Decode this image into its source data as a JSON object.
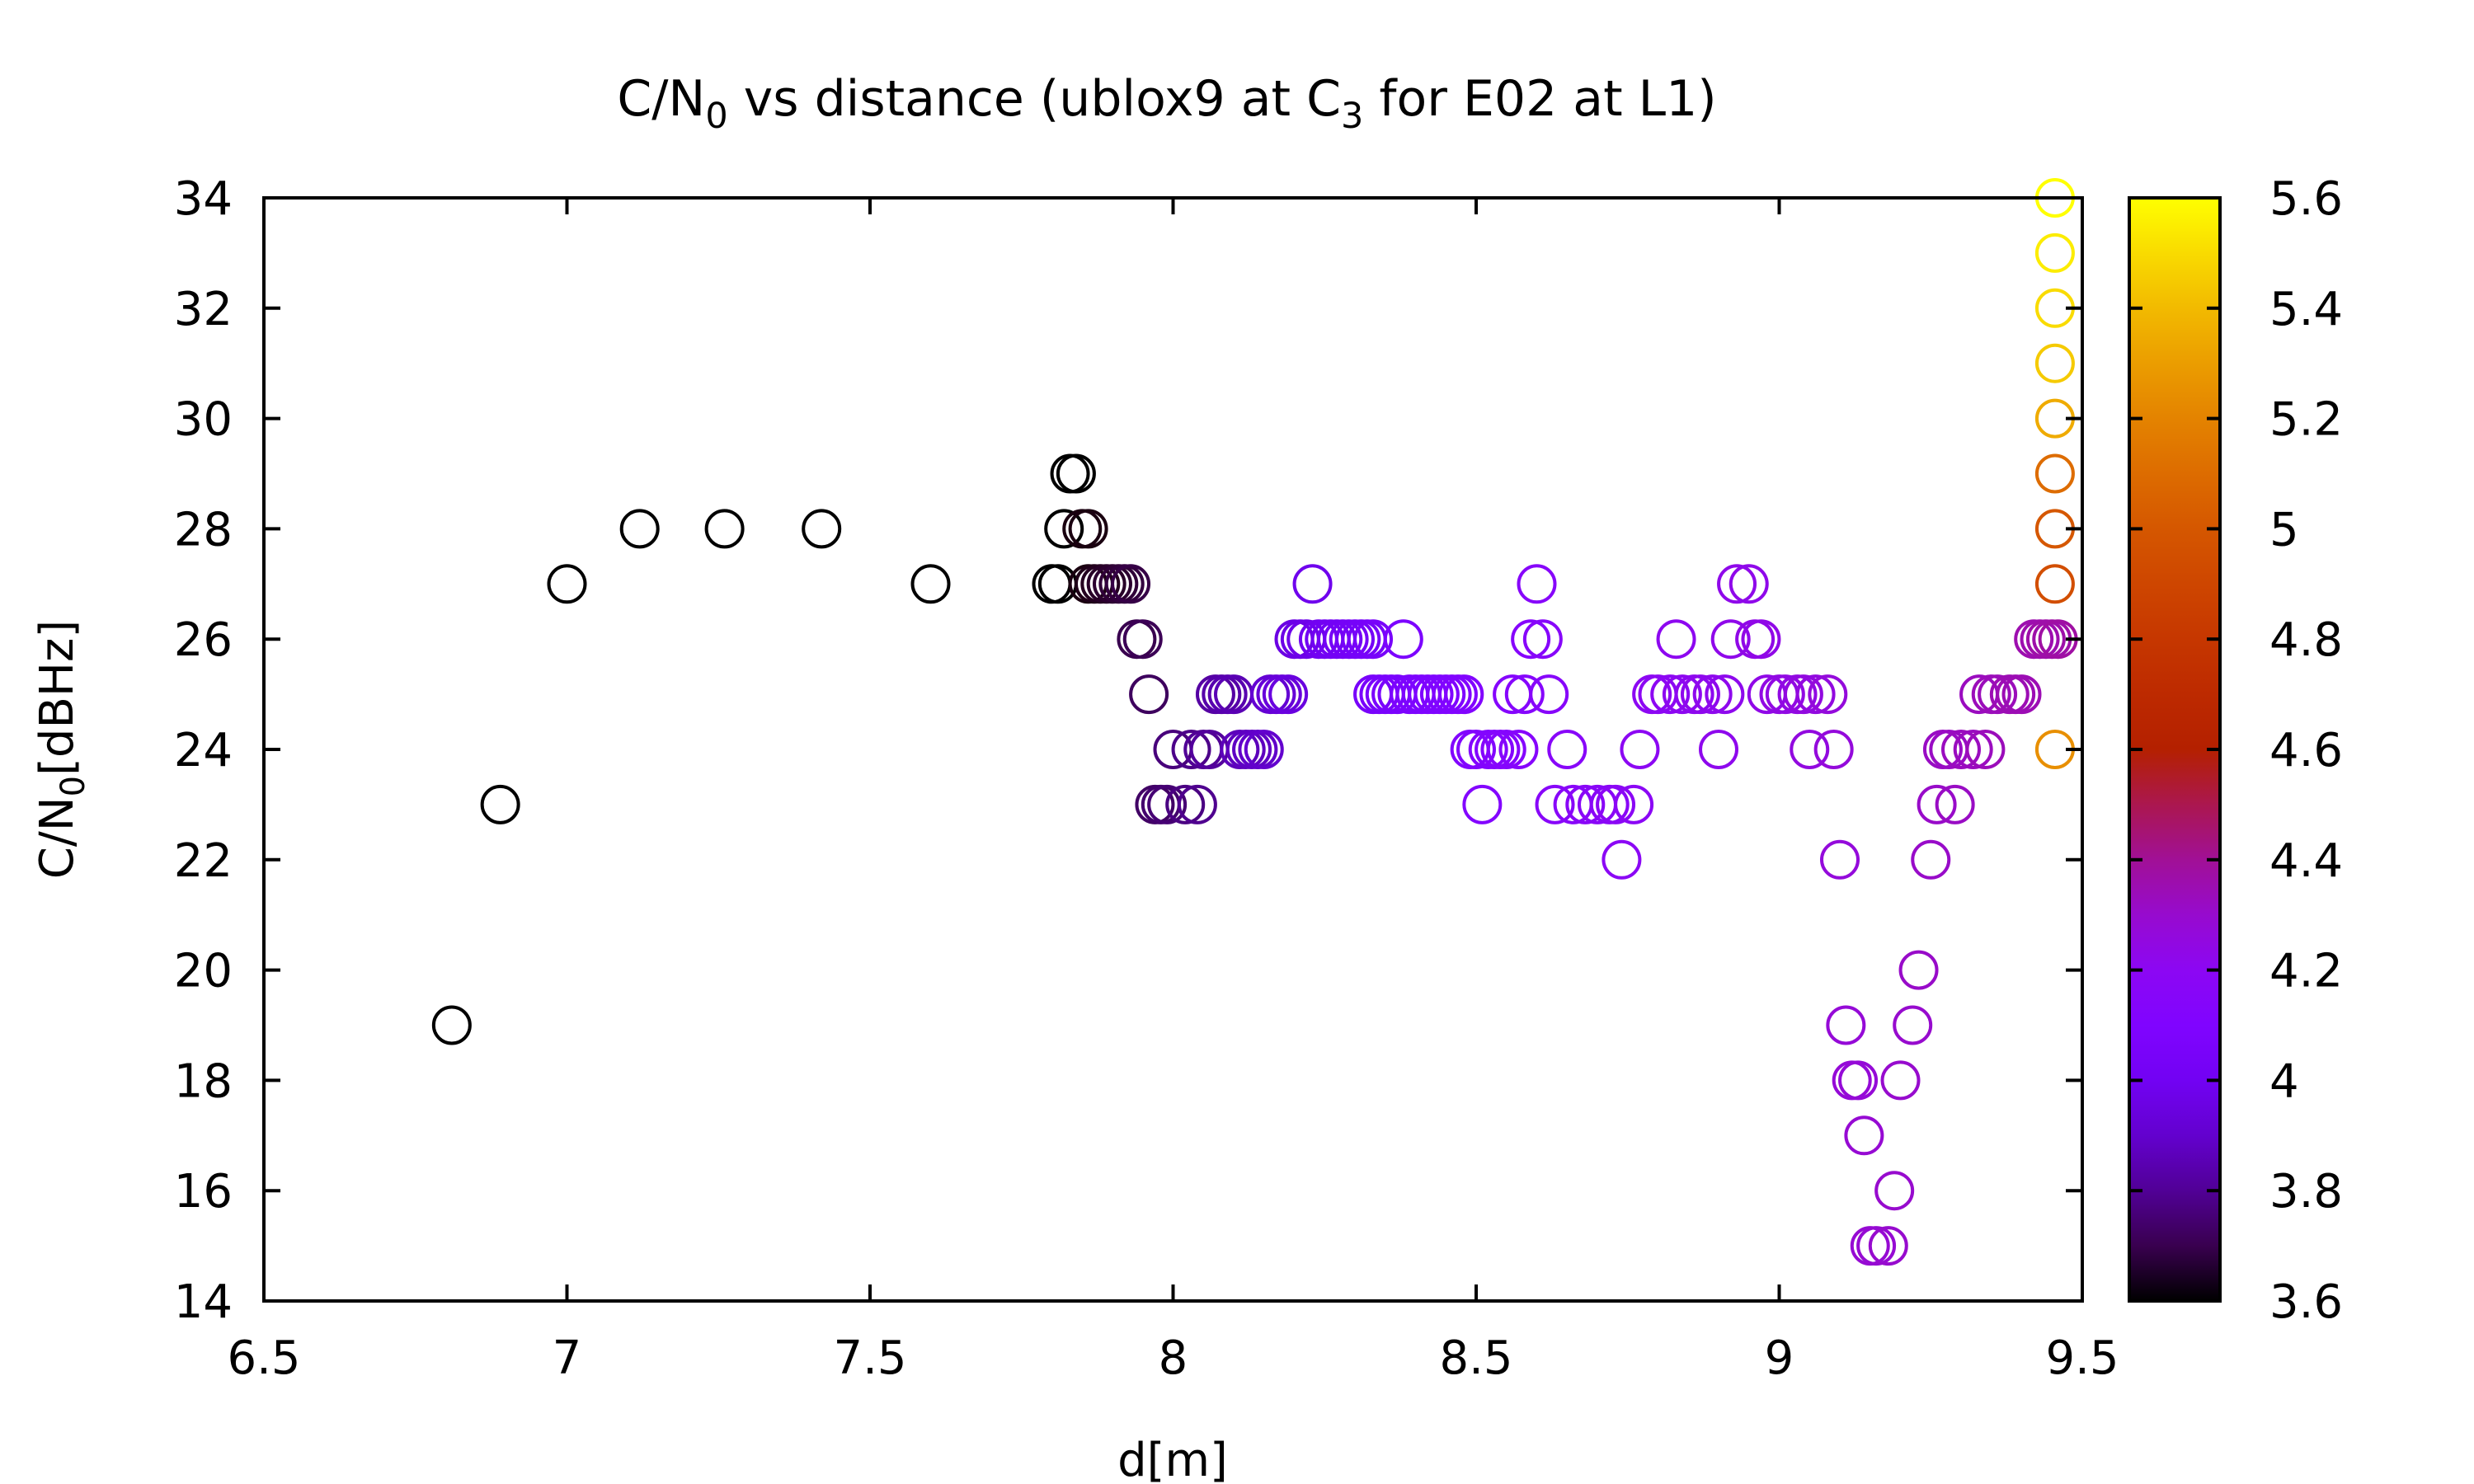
{
  "chart_data": {
    "type": "scatter",
    "title_parts": [
      {
        "text": "C/N",
        "sub": false
      },
      {
        "text": "0",
        "sub": true
      },
      {
        "text": " vs distance (ublox9 at C",
        "sub": false
      },
      {
        "text": "3",
        "sub": true
      },
      {
        "text": " for E02 at L1)",
        "sub": false
      }
    ],
    "xlabel": "d[m]",
    "ylabel_parts": [
      {
        "text": "C/N",
        "sub": false
      },
      {
        "text": "0",
        "sub": true
      },
      {
        "text": "[dBHz]",
        "sub": false
      }
    ],
    "xlim": [
      6.5,
      9.5
    ],
    "ylim": [
      14,
      34
    ],
    "xticks": [
      "6.5",
      "7",
      "7.5",
      "8",
      "8.5",
      "9",
      "9.5"
    ],
    "yticks": [
      "14",
      "16",
      "18",
      "20",
      "22",
      "24",
      "26",
      "28",
      "30",
      "32",
      "34"
    ],
    "colorbar": {
      "range": [
        3.6,
        5.6
      ],
      "ticks": [
        "3.6",
        "3.8",
        "4",
        "4.2",
        "4.4",
        "4.6",
        "4.8",
        "5",
        "5.2",
        "5.4",
        "5.6"
      ],
      "palette": "gnuplot"
    },
    "grid": false,
    "marker": "open-circle",
    "points": [
      [
        6.81,
        19,
        3.6
      ],
      [
        6.89,
        23,
        3.6
      ],
      [
        7.0,
        27,
        3.6
      ],
      [
        7.12,
        28,
        3.6
      ],
      [
        7.26,
        28,
        3.6
      ],
      [
        7.42,
        28,
        3.6
      ],
      [
        7.6,
        27,
        3.6
      ],
      [
        7.8,
        27,
        3.6
      ],
      [
        7.81,
        27,
        3.6
      ],
      [
        7.82,
        28,
        3.6
      ],
      [
        7.83,
        29,
        3.6
      ],
      [
        7.84,
        29,
        3.6
      ],
      [
        7.85,
        28,
        3.62
      ],
      [
        7.86,
        28,
        3.62
      ],
      [
        7.86,
        27,
        3.62
      ],
      [
        7.87,
        27,
        3.63
      ],
      [
        7.88,
        27,
        3.64
      ],
      [
        7.89,
        27,
        3.65
      ],
      [
        7.9,
        27,
        3.66
      ],
      [
        7.91,
        27,
        3.67
      ],
      [
        7.92,
        27,
        3.68
      ],
      [
        7.93,
        27,
        3.69
      ],
      [
        7.94,
        26,
        3.7
      ],
      [
        7.95,
        26,
        3.71
      ],
      [
        7.96,
        25,
        3.72
      ],
      [
        7.97,
        23,
        3.73
      ],
      [
        7.98,
        23,
        3.74
      ],
      [
        7.99,
        23,
        3.75
      ],
      [
        8.0,
        24,
        3.76
      ],
      [
        8.02,
        23,
        3.77
      ],
      [
        8.03,
        24,
        3.78
      ],
      [
        8.04,
        23,
        3.79
      ],
      [
        8.05,
        24,
        3.8
      ],
      [
        8.06,
        24,
        3.81
      ],
      [
        8.07,
        25,
        3.82
      ],
      [
        8.08,
        25,
        3.83
      ],
      [
        8.09,
        25,
        3.84
      ],
      [
        8.1,
        25,
        3.85
      ],
      [
        8.11,
        24,
        3.86
      ],
      [
        8.12,
        24,
        3.87
      ],
      [
        8.13,
        24,
        3.88
      ],
      [
        8.14,
        24,
        3.89
      ],
      [
        8.15,
        24,
        3.9
      ],
      [
        8.16,
        25,
        3.91
      ],
      [
        8.17,
        25,
        3.92
      ],
      [
        8.18,
        25,
        3.93
      ],
      [
        8.19,
        25,
        3.94
      ],
      [
        8.2,
        26,
        3.95
      ],
      [
        8.21,
        26,
        3.96
      ],
      [
        8.22,
        26,
        3.97
      ],
      [
        8.23,
        27,
        3.98
      ],
      [
        8.24,
        26,
        3.99
      ],
      [
        8.25,
        26,
        4.0
      ],
      [
        8.26,
        26,
        4.0
      ],
      [
        8.27,
        26,
        4.01
      ],
      [
        8.28,
        26,
        4.01
      ],
      [
        8.29,
        26,
        4.02
      ],
      [
        8.3,
        26,
        4.02
      ],
      [
        8.31,
        26,
        4.03
      ],
      [
        8.32,
        26,
        4.03
      ],
      [
        8.33,
        26,
        4.04
      ],
      [
        8.33,
        25,
        4.04
      ],
      [
        8.34,
        25,
        4.05
      ],
      [
        8.35,
        25,
        4.05
      ],
      [
        8.36,
        25,
        4.06
      ],
      [
        8.37,
        25,
        4.06
      ],
      [
        8.38,
        26,
        4.07
      ],
      [
        8.39,
        25,
        4.07
      ],
      [
        8.4,
        25,
        4.08
      ],
      [
        8.41,
        25,
        4.08
      ],
      [
        8.42,
        25,
        4.09
      ],
      [
        8.43,
        25,
        4.09
      ],
      [
        8.44,
        25,
        4.1
      ],
      [
        8.45,
        25,
        4.1
      ],
      [
        8.46,
        25,
        4.11
      ],
      [
        8.47,
        25,
        4.11
      ],
      [
        8.48,
        25,
        4.12
      ],
      [
        8.49,
        24,
        4.12
      ],
      [
        8.5,
        24,
        4.12
      ],
      [
        8.51,
        23,
        4.13
      ],
      [
        8.52,
        24,
        4.13
      ],
      [
        8.53,
        24,
        4.13
      ],
      [
        8.54,
        24,
        4.14
      ],
      [
        8.55,
        24,
        4.14
      ],
      [
        8.56,
        25,
        4.14
      ],
      [
        8.57,
        24,
        4.15
      ],
      [
        8.58,
        25,
        4.15
      ],
      [
        8.59,
        26,
        4.15
      ],
      [
        8.6,
        27,
        4.16
      ],
      [
        8.61,
        26,
        4.16
      ],
      [
        8.62,
        25,
        4.16
      ],
      [
        8.63,
        23,
        4.17
      ],
      [
        8.65,
        24,
        4.17
      ],
      [
        8.66,
        23,
        4.17
      ],
      [
        8.68,
        23,
        4.18
      ],
      [
        8.7,
        23,
        4.18
      ],
      [
        8.72,
        23,
        4.18
      ],
      [
        8.73,
        23,
        4.19
      ],
      [
        8.74,
        22,
        4.19
      ],
      [
        8.76,
        23,
        4.19
      ],
      [
        8.77,
        24,
        4.2
      ],
      [
        8.79,
        25,
        4.2
      ],
      [
        8.8,
        25,
        4.2
      ],
      [
        8.82,
        25,
        4.2
      ],
      [
        8.83,
        26,
        4.21
      ],
      [
        8.84,
        25,
        4.21
      ],
      [
        8.86,
        25,
        4.21
      ],
      [
        8.87,
        25,
        4.22
      ],
      [
        8.89,
        25,
        4.22
      ],
      [
        8.9,
        24,
        4.22
      ],
      [
        8.91,
        25,
        4.22
      ],
      [
        8.92,
        26,
        4.23
      ],
      [
        8.93,
        27,
        4.23
      ],
      [
        8.95,
        27,
        4.23
      ],
      [
        8.96,
        26,
        4.24
      ],
      [
        8.97,
        26,
        4.24
      ],
      [
        8.98,
        25,
        4.24
      ],
      [
        9.0,
        25,
        4.25
      ],
      [
        9.01,
        25,
        4.25
      ],
      [
        9.03,
        25,
        4.25
      ],
      [
        9.04,
        25,
        4.26
      ],
      [
        9.05,
        24,
        4.26
      ],
      [
        9.06,
        25,
        4.26
      ],
      [
        9.08,
        25,
        4.27
      ],
      [
        9.09,
        24,
        4.27
      ],
      [
        9.1,
        22,
        4.27
      ],
      [
        9.11,
        19,
        4.28
      ],
      [
        9.12,
        18,
        4.28
      ],
      [
        9.13,
        18,
        4.28
      ],
      [
        9.14,
        17,
        4.29
      ],
      [
        9.15,
        15,
        4.29
      ],
      [
        9.16,
        15,
        4.29
      ],
      [
        9.18,
        15,
        4.3
      ],
      [
        9.19,
        16,
        4.3
      ],
      [
        9.2,
        18,
        4.3
      ],
      [
        9.22,
        19,
        4.3
      ],
      [
        9.23,
        20,
        4.31
      ],
      [
        9.25,
        22,
        4.31
      ],
      [
        9.26,
        23,
        4.31
      ],
      [
        9.27,
        24,
        4.32
      ],
      [
        9.28,
        24,
        4.32
      ],
      [
        9.29,
        23,
        4.32
      ],
      [
        9.3,
        24,
        4.33
      ],
      [
        9.32,
        24,
        4.33
      ],
      [
        9.33,
        25,
        4.33
      ],
      [
        9.34,
        24,
        4.34
      ],
      [
        9.35,
        25,
        4.34
      ],
      [
        9.36,
        25,
        4.34
      ],
      [
        9.38,
        25,
        4.35
      ],
      [
        9.39,
        25,
        4.35
      ],
      [
        9.4,
        25,
        4.35
      ],
      [
        9.42,
        26,
        4.36
      ],
      [
        9.43,
        26,
        4.36
      ],
      [
        9.44,
        26,
        4.37
      ],
      [
        9.45,
        26,
        4.37
      ],
      [
        9.46,
        26,
        4.38
      ],
      [
        9.455,
        24,
        5.25
      ],
      [
        9.455,
        27,
        4.95
      ],
      [
        9.455,
        28,
        5.0
      ],
      [
        9.455,
        29,
        5.1
      ],
      [
        9.455,
        30,
        5.35
      ],
      [
        9.455,
        31,
        5.45
      ],
      [
        9.455,
        32,
        5.5
      ],
      [
        9.455,
        33,
        5.55
      ],
      [
        9.455,
        34,
        5.6
      ]
    ]
  }
}
